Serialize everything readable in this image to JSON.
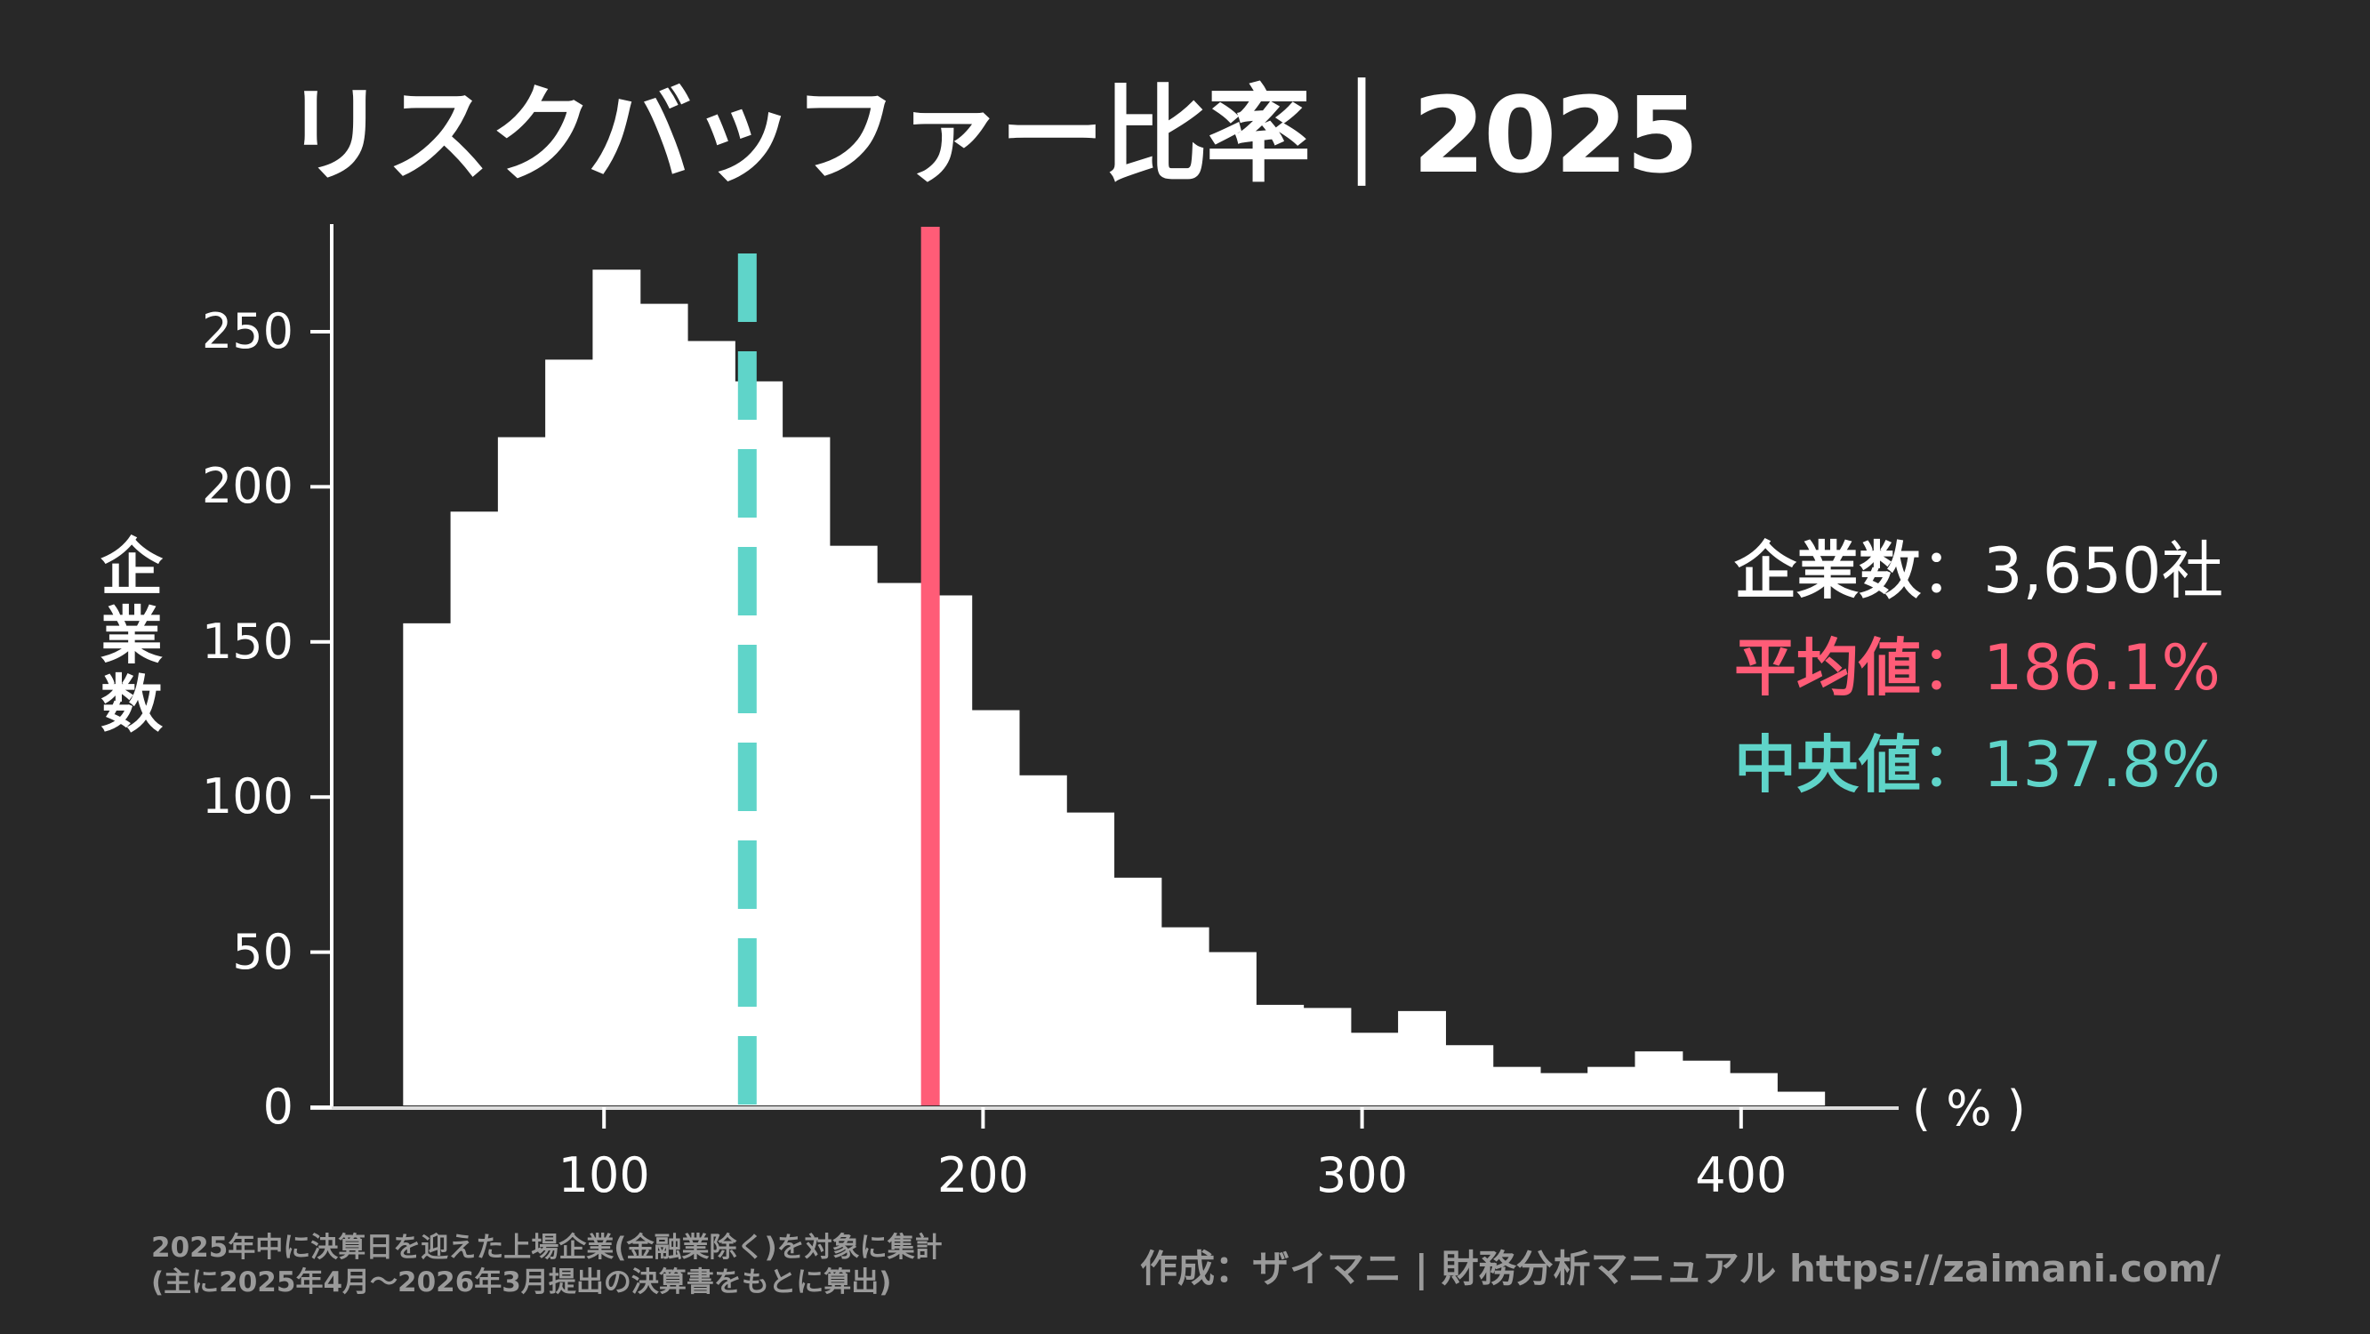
{
  "title": "リスクバッファー比率｜2025",
  "ylabel_chars": [
    "企",
    "業",
    "数"
  ],
  "x_unit": "( % )",
  "stats": {
    "count": {
      "label": "企業数",
      "sep": "：",
      "value": "3,650社",
      "color": "#ffffff"
    },
    "mean": {
      "label": "平均値",
      "sep": "：",
      "value": "186.1%",
      "color": "#ff5c77"
    },
    "median": {
      "label": "中央値",
      "sep": "：",
      "value": "137.8%",
      "color": "#5fd4c9"
    }
  },
  "footnote": {
    "line1": "2025年中に決算日を迎えた上場企業(金融業除く)を対象に集計",
    "line2": "(主に2025年4月〜2026年3月提出の決算書をもとに算出)"
  },
  "credit": "作成：ザイマニ | 財務分析マニュアル https://zaimani.com/",
  "colors": {
    "background": "#282828",
    "bars": "#ffffff",
    "axis": "#ffffff",
    "mean_line": "#ff5c77",
    "median_line": "#5fd4c9"
  },
  "chart_data": {
    "type": "bar",
    "subtype": "histogram",
    "title": "リスクバッファー比率｜2025",
    "xlabel": "( % )",
    "ylabel": "企業数",
    "bin_start": 47,
    "bin_width": 12.5,
    "values": [
      156,
      192,
      216,
      241,
      270,
      259,
      247,
      234,
      216,
      181,
      169,
      165,
      128,
      107,
      95,
      74,
      58,
      50,
      33,
      32,
      24,
      31,
      20,
      13,
      11,
      13,
      18,
      15,
      11,
      5
    ],
    "xticks": [
      100,
      200,
      300,
      400
    ],
    "yticks": [
      0,
      50,
      100,
      150,
      200,
      250
    ],
    "xlim": [
      25,
      445
    ],
    "ylim": [
      0,
      280
    ],
    "grid": false,
    "reference_lines": [
      {
        "name": "平均値",
        "x": 186.1,
        "style": "solid",
        "color": "#ff5c77"
      },
      {
        "name": "中央値",
        "x": 137.8,
        "style": "dashed",
        "color": "#5fd4c9"
      }
    ],
    "annotations": [
      "企業数：3,650社",
      "平均値：186.1%",
      "中央値：137.8%"
    ]
  }
}
